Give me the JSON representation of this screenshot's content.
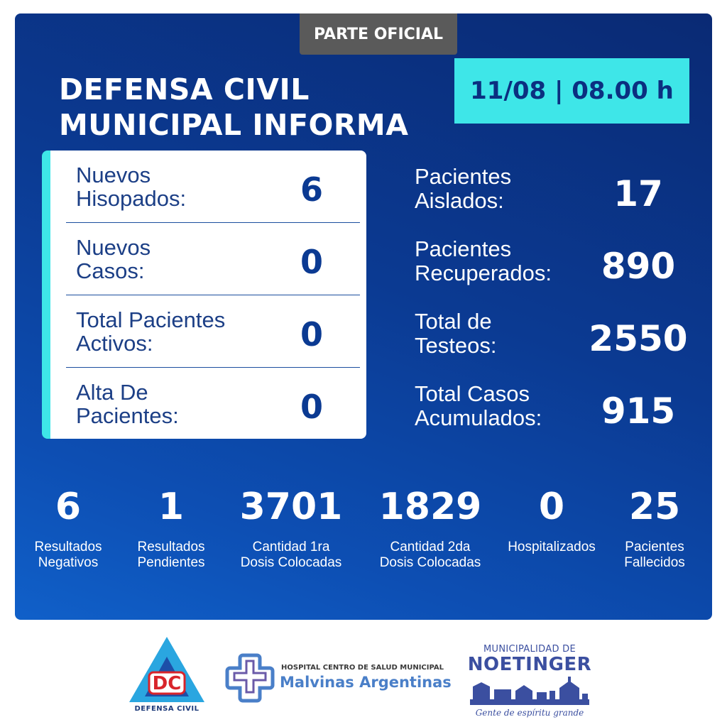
{
  "header": {
    "tab_label": "PARTE OFICIAL",
    "title_line1": "DEFENSA CIVIL",
    "title_line2": "MUNICIPAL INFORMA",
    "date_time": "11/08 | 08.00 h"
  },
  "card": {
    "rows": [
      {
        "label_line1": "Nuevos",
        "label_line2": "Hisopados:",
        "value": "6"
      },
      {
        "label_line1": "Nuevos",
        "label_line2": "Casos:",
        "value": "0"
      },
      {
        "label_line1": "Total Pacientes",
        "label_line2": "Activos:",
        "value": "0"
      },
      {
        "label_line1": "Alta De",
        "label_line2": "Pacientes:",
        "value": "0"
      }
    ]
  },
  "right_stats": [
    {
      "label_line1": "Pacientes",
      "label_line2": "Aislados:",
      "value": "17"
    },
    {
      "label_line1": "Pacientes",
      "label_line2": "Recuperados:",
      "value": "890"
    },
    {
      "label_line1": "Total de",
      "label_line2": "Testeos:",
      "value": "2550"
    },
    {
      "label_line1": "Total Casos",
      "label_line2": "Acumulados:",
      "value": "915"
    }
  ],
  "bottom_stats": [
    {
      "value": "6",
      "label_line1": "Resultados",
      "label_line2": "Negativos"
    },
    {
      "value": "1",
      "label_line1": "Resultados",
      "label_line2": "Pendientes"
    },
    {
      "value": "3701",
      "label_line1": "Cantidad 1ra",
      "label_line2": "Dosis Colocadas"
    },
    {
      "value": "1829",
      "label_line1": "Cantidad 2da",
      "label_line2": "Dosis Colocadas"
    },
    {
      "value": "0",
      "label_line1": "Hospitalizados",
      "label_line2": ""
    },
    {
      "value": "25",
      "label_line1": "Pacientes",
      "label_line2": "Fallecidos"
    }
  ],
  "footer": {
    "dc_logo": {
      "letters": "DC",
      "name": "DEFENSA CIVIL"
    },
    "hospital": {
      "line1": "HOSPITAL CENTRO DE SALUD MUNICIPAL",
      "line2": "Malvinas Argentinas"
    },
    "municipality": {
      "line1": "MUNICIPALIDAD DE",
      "line2": "NOETINGER",
      "tagline": "Gente de espíritu grande"
    }
  },
  "colors": {
    "panel_blue": "#0b3a92",
    "accent_cyan": "#3ee6e8",
    "tab_gray": "#5a5a5a",
    "card_text_blue": "#1c3f86",
    "dc_red": "#d8242a",
    "hospital_blue": "#4a7fc8",
    "muni_blue": "#3b4fa0"
  }
}
